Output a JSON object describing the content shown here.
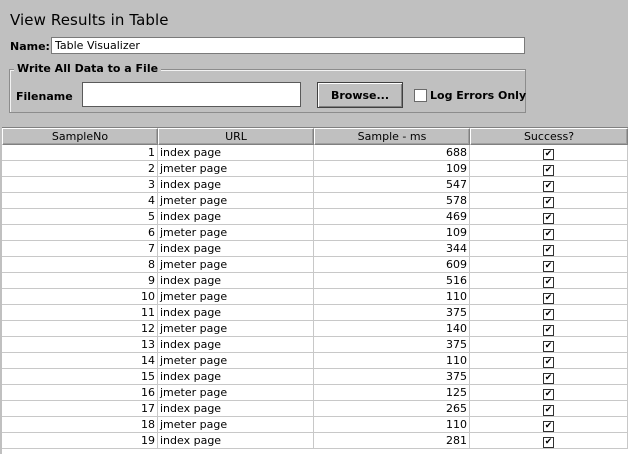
{
  "panel": {
    "title": "View Results in Table",
    "name_label": "Name:",
    "name_value": "Table Visualizer"
  },
  "file_group": {
    "legend": "Write All Data to a File",
    "filename_label": "Filename",
    "filename_value": "",
    "browse_label": "Browse...",
    "log_errors_label": "Log Errors Only",
    "log_errors_checked": false
  },
  "table": {
    "columns": [
      "SampleNo",
      "URL",
      "Sample - ms",
      "Success?"
    ],
    "rows": [
      {
        "no": "1",
        "url": "index page",
        "ms": "688",
        "success": true
      },
      {
        "no": "2",
        "url": "jmeter page",
        "ms": "109",
        "success": true
      },
      {
        "no": "3",
        "url": "index page",
        "ms": "547",
        "success": true
      },
      {
        "no": "4",
        "url": "jmeter page",
        "ms": "578",
        "success": true
      },
      {
        "no": "5",
        "url": "index page",
        "ms": "469",
        "success": true
      },
      {
        "no": "6",
        "url": "jmeter page",
        "ms": "109",
        "success": true
      },
      {
        "no": "7",
        "url": "index page",
        "ms": "344",
        "success": true
      },
      {
        "no": "8",
        "url": "jmeter page",
        "ms": "609",
        "success": true
      },
      {
        "no": "9",
        "url": "index page",
        "ms": "516",
        "success": true
      },
      {
        "no": "10",
        "url": "jmeter page",
        "ms": "110",
        "success": true
      },
      {
        "no": "11",
        "url": "index page",
        "ms": "375",
        "success": true
      },
      {
        "no": "12",
        "url": "jmeter page",
        "ms": "140",
        "success": true
      },
      {
        "no": "13",
        "url": "index page",
        "ms": "375",
        "success": true
      },
      {
        "no": "14",
        "url": "jmeter page",
        "ms": "110",
        "success": true
      },
      {
        "no": "15",
        "url": "index page",
        "ms": "375",
        "success": true
      },
      {
        "no": "16",
        "url": "jmeter page",
        "ms": "125",
        "success": true
      },
      {
        "no": "17",
        "url": "index page",
        "ms": "265",
        "success": true
      },
      {
        "no": "18",
        "url": "jmeter page",
        "ms": "110",
        "success": true
      },
      {
        "no": "19",
        "url": "index page",
        "ms": "281",
        "success": true
      }
    ]
  }
}
